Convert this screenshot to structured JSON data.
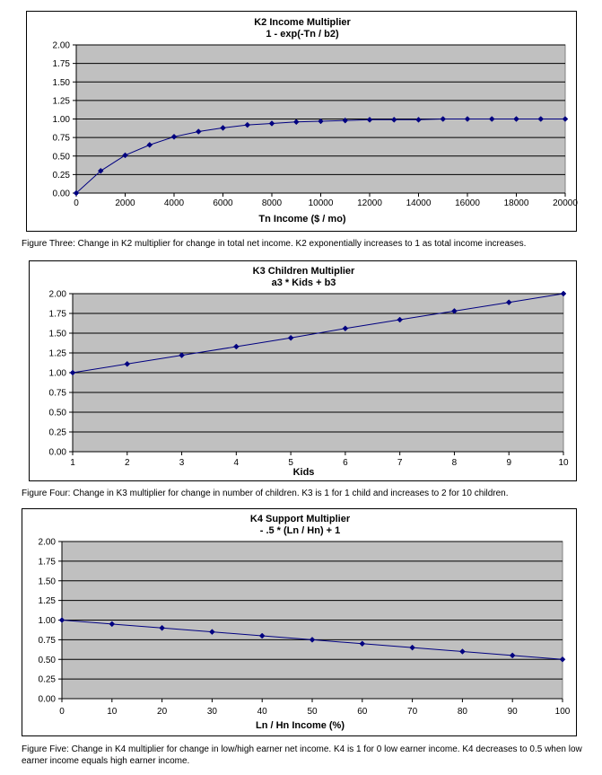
{
  "chart_data": [
    {
      "type": "line",
      "title": "K2 Income Multiplier",
      "subtitle": "1 - exp(-Tn / b2)",
      "xlabel": "Tn Income ($ / mo)",
      "ylabel": "",
      "x": [
        0,
        1000,
        2000,
        3000,
        4000,
        5000,
        6000,
        7000,
        8000,
        9000,
        10000,
        11000,
        12000,
        13000,
        14000,
        15000,
        16000,
        17000,
        18000,
        19000,
        20000
      ],
      "series": [
        {
          "values": [
            0.0,
            0.3,
            0.51,
            0.65,
            0.76,
            0.83,
            0.88,
            0.92,
            0.94,
            0.96,
            0.97,
            0.98,
            0.99,
            0.99,
            0.99,
            1.0,
            1.0,
            1.0,
            1.0,
            1.0,
            1.0
          ]
        }
      ],
      "xlim": [
        0,
        20000
      ],
      "ylim": [
        0,
        2
      ],
      "x_ticks": [
        "0",
        "2000",
        "4000",
        "6000",
        "8000",
        "10000",
        "12000",
        "14000",
        "16000",
        "18000",
        "20000"
      ],
      "x_tick_values": [
        0,
        2000,
        4000,
        6000,
        8000,
        10000,
        12000,
        14000,
        16000,
        18000,
        20000
      ],
      "y_ticks": [
        "0.00",
        "0.25",
        "0.50",
        "0.75",
        "1.00",
        "1.25",
        "1.50",
        "1.75",
        "2.00"
      ],
      "y_tick_values": [
        0,
        0.25,
        0.5,
        0.75,
        1.0,
        1.25,
        1.5,
        1.75,
        2.0
      ],
      "grid": true,
      "legend": "none",
      "plot_bg": "#c0c0c0",
      "line_color": "#000080"
    },
    {
      "type": "line",
      "title": "K3 Children Multiplier",
      "subtitle": "a3 * Kids + b3",
      "xlabel": "Kids",
      "ylabel": "",
      "x": [
        1,
        2,
        3,
        4,
        5,
        6,
        7,
        8,
        9,
        10
      ],
      "series": [
        {
          "values": [
            1.0,
            1.11,
            1.22,
            1.33,
            1.44,
            1.56,
            1.67,
            1.78,
            1.89,
            2.0
          ]
        }
      ],
      "xlim": [
        1,
        10
      ],
      "ylim": [
        0,
        2
      ],
      "x_ticks": [
        "1",
        "2",
        "3",
        "4",
        "5",
        "6",
        "7",
        "8",
        "9",
        "10"
      ],
      "x_tick_values": [
        1,
        2,
        3,
        4,
        5,
        6,
        7,
        8,
        9,
        10
      ],
      "y_ticks": [
        "0.00",
        "0.25",
        "0.50",
        "0.75",
        "1.00",
        "1.25",
        "1.50",
        "1.75",
        "2.00"
      ],
      "y_tick_values": [
        0,
        0.25,
        0.5,
        0.75,
        1.0,
        1.25,
        1.5,
        1.75,
        2.0
      ],
      "grid": true,
      "legend": "none",
      "plot_bg": "#c0c0c0",
      "line_color": "#000080"
    },
    {
      "type": "line",
      "title": "K4 Support Multiplier",
      "subtitle": "- .5 * (Ln / Hn) + 1",
      "xlabel": "Ln / Hn Income (%)",
      "ylabel": "",
      "x": [
        0,
        10,
        20,
        30,
        40,
        50,
        60,
        70,
        80,
        90,
        100
      ],
      "series": [
        {
          "values": [
            1.0,
            0.95,
            0.9,
            0.85,
            0.8,
            0.75,
            0.7,
            0.65,
            0.6,
            0.55,
            0.5
          ]
        }
      ],
      "xlim": [
        0,
        100
      ],
      "ylim": [
        0,
        2
      ],
      "x_ticks": [
        "0",
        "10",
        "20",
        "30",
        "40",
        "50",
        "60",
        "70",
        "80",
        "90",
        "100"
      ],
      "x_tick_values": [
        0,
        10,
        20,
        30,
        40,
        50,
        60,
        70,
        80,
        90,
        100
      ],
      "y_ticks": [
        "0.00",
        "0.25",
        "0.50",
        "0.75",
        "1.00",
        "1.25",
        "1.50",
        "1.75",
        "2.00"
      ],
      "y_tick_values": [
        0,
        0.25,
        0.5,
        0.75,
        1.0,
        1.25,
        1.5,
        1.75,
        2.0
      ],
      "grid": true,
      "legend": "none",
      "plot_bg": "#c0c0c0",
      "line_color": "#000080"
    }
  ],
  "captions": {
    "figure_three": "Figure Three: Change in K2 multiplier for change in total net income.  K2 exponentially increases to 1 as total income increases.",
    "figure_four": "Figure Four: Change in K3 multiplier for change in number of children.  K3 is 1 for 1 child and increases to 2 for 10 children.",
    "figure_five": "Figure Five: Change in K4 multiplier for change in low/high earner net income.  K4 is 1 for 0 low earner income.  K4 decreases to 0.5 when low earner income equals high earner income."
  }
}
